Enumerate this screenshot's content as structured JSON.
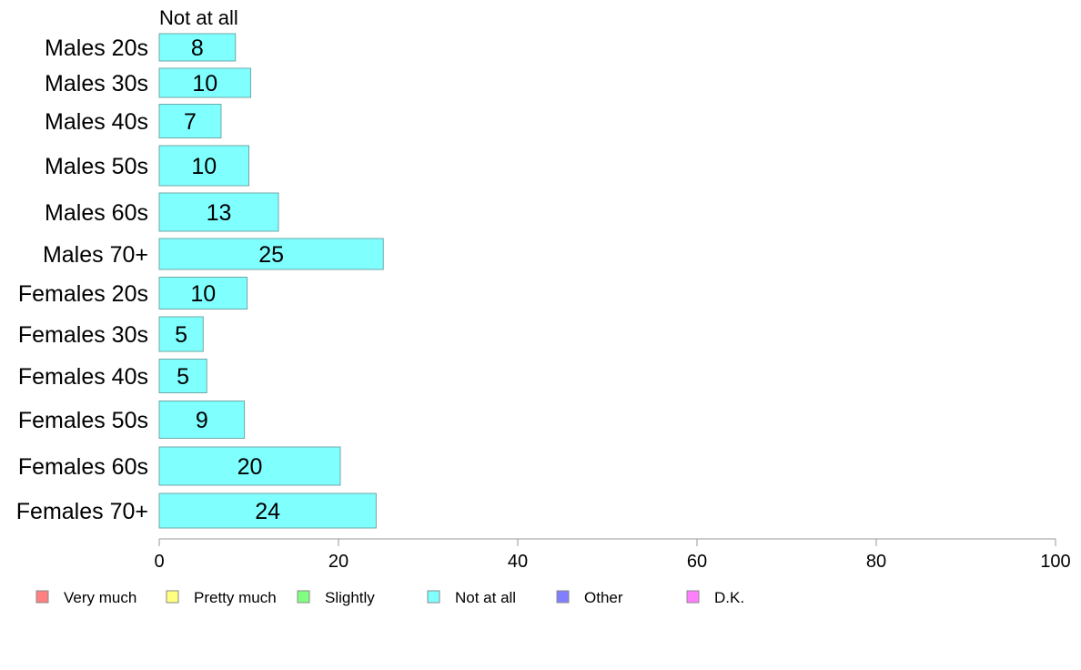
{
  "chart_data": {
    "type": "bar",
    "orientation": "horizontal",
    "series_header": "Not at all",
    "categories": [
      "Males 20s",
      "Males 30s",
      "Males 40s",
      "Males 50s",
      "Males 60s",
      "Males 70+",
      "Females 20s",
      "Females 30s",
      "Females 40s",
      "Females 50s",
      "Females 60s",
      "Females 70+"
    ],
    "series": [
      {
        "name": "Not at all",
        "values": [
          8.5,
          10.2,
          6.9,
          10.0,
          13.3,
          25.0,
          9.8,
          4.9,
          5.3,
          9.5,
          20.2,
          24.2
        ],
        "labels": [
          "8",
          "10",
          "7",
          "10",
          "13",
          "25",
          "10",
          "5",
          "5",
          "9",
          "20",
          "24"
        ]
      }
    ],
    "xlim": [
      0,
      100
    ],
    "xticks": [
      "0",
      "20",
      "40",
      "60",
      "80",
      "100"
    ],
    "legend": {
      "placement": "bottom",
      "items": [
        {
          "label": "Very much",
          "color": "#ff8080"
        },
        {
          "label": "Pretty much",
          "color": "#ffff80"
        },
        {
          "label": "Slightly",
          "color": "#80ff80"
        },
        {
          "label": "Not at all",
          "color": "#80ffff"
        },
        {
          "label": "Other",
          "color": "#8080ff"
        },
        {
          "label": "D.K.",
          "color": "#ff80ff"
        }
      ]
    },
    "colors": {
      "bar_fill": "#80ffff",
      "bar_stroke": "#6fa7a7",
      "axis": "#999999"
    }
  }
}
